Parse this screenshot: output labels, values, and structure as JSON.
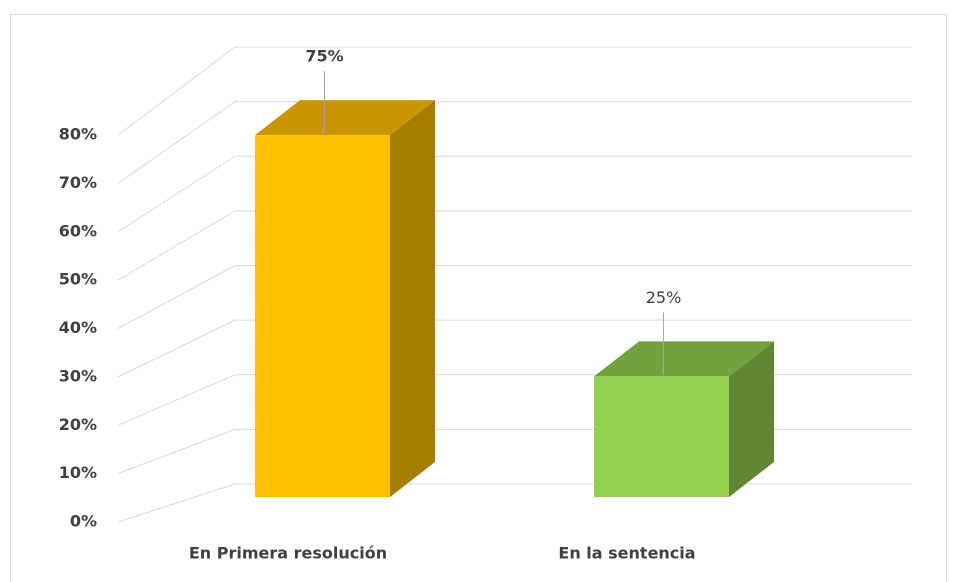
{
  "chart_data": {
    "type": "bar",
    "categories": [
      "En Primera resolución",
      "En la sentencia"
    ],
    "values": [
      75,
      25
    ],
    "value_labels": [
      "75%",
      "25%"
    ],
    "colors": [
      "#FFC000",
      "#92D050"
    ],
    "ylim": [
      0,
      80
    ],
    "yticks": [
      {
        "value": 0,
        "label": "0%"
      },
      {
        "value": 10,
        "label": "10%"
      },
      {
        "value": 20,
        "label": "20%"
      },
      {
        "value": 30,
        "label": "30%"
      },
      {
        "value": 40,
        "label": "40%"
      },
      {
        "value": 50,
        "label": "50%"
      },
      {
        "value": 60,
        "label": "60%"
      },
      {
        "value": 70,
        "label": "70%"
      },
      {
        "value": 80,
        "label": "80%"
      }
    ],
    "grid": true
  }
}
